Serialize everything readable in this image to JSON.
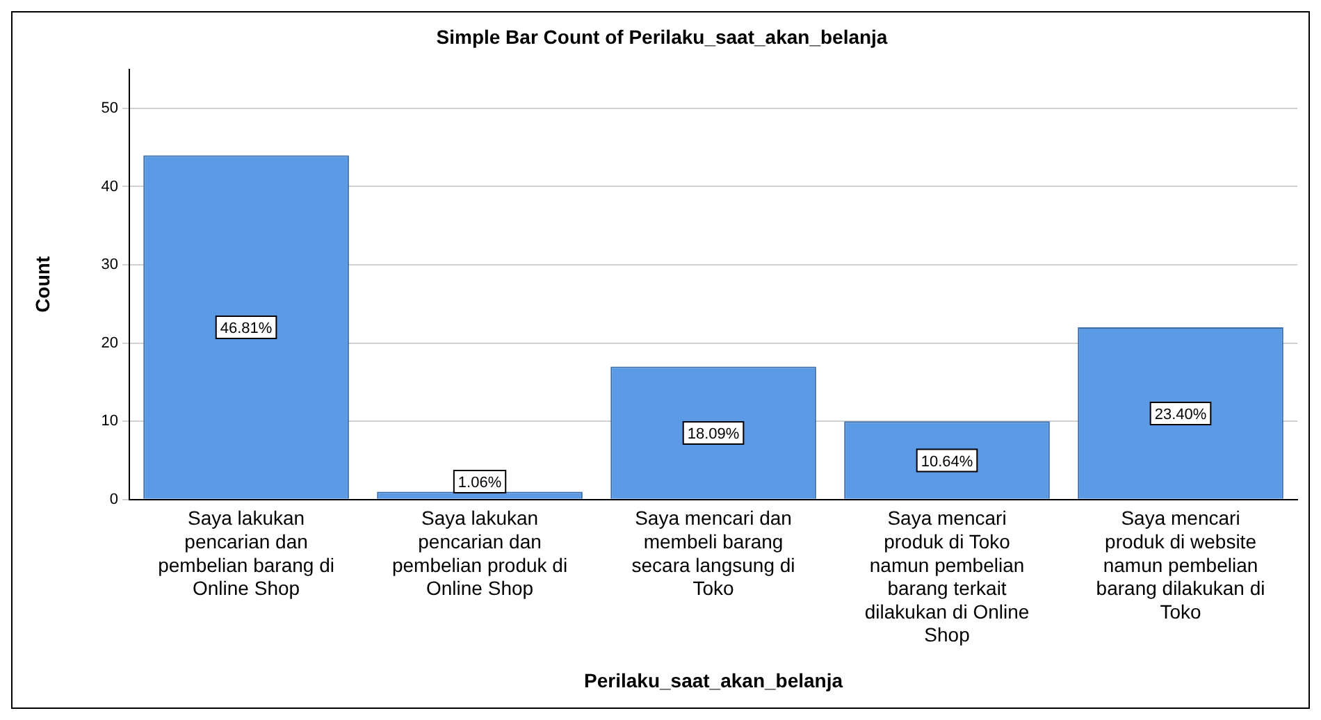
{
  "chart_data": {
    "type": "bar",
    "title": "Simple Bar Count of Perilaku_saat_akan_belanja",
    "xlabel": "Perilaku_saat_akan_belanja",
    "ylabel": "Count",
    "categories": [
      "Saya lakukan pencarian dan pembelian barang di Online Shop",
      "Saya lakukan pencarian dan pembelian produk di Online Shop",
      "Saya mencari dan membeli barang secara langsung di Toko",
      "Saya mencari produk di Toko namun pembelian barang terkait dilakukan di Online Shop",
      "Saya mencari produk di website namun pembelian barang dilakukan di Toko"
    ],
    "values": [
      44,
      1,
      17,
      10,
      22
    ],
    "annotations": [
      {
        "text": "46.81%",
        "x": "Saya lakukan pencarian dan pembelian barang di Online Shop",
        "y": 22
      },
      {
        "text": "1.06%",
        "x": "Saya lakukan pencarian dan pembelian produk di Online Shop",
        "y": 2.3
      },
      {
        "text": "18.09%",
        "x": "Saya mencari dan membeli barang secara langsung di Toko",
        "y": 8.5
      },
      {
        "text": "10.64%",
        "x": "Saya mencari produk di Toko namun pembelian barang terkait dilakukan di Online Shop",
        "y": 5
      },
      {
        "text": "23.40%",
        "x": "Saya mencari produk di website namun pembelian barang dilakukan di Toko",
        "y": 11
      }
    ],
    "color": "#5b9ae4",
    "ylim": [
      0,
      55
    ],
    "yticks": [
      0,
      10,
      20,
      30,
      40,
      50
    ],
    "grid": "y"
  }
}
